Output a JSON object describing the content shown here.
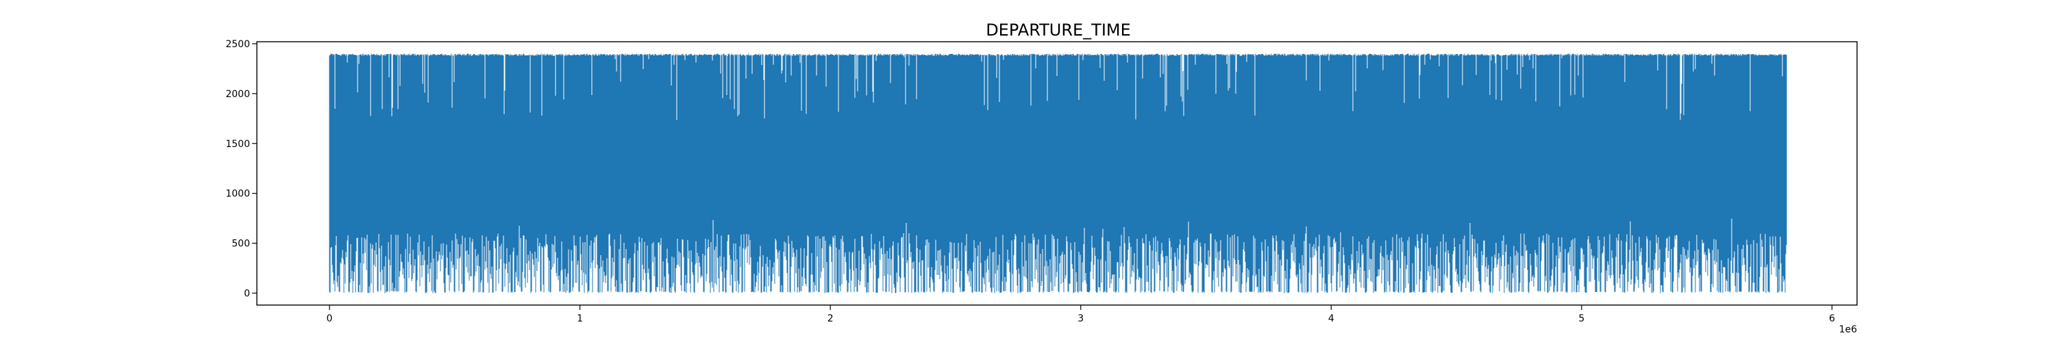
{
  "chart_data": {
    "type": "line",
    "title": "DEPARTURE_TIME",
    "xlabel": "",
    "ylabel": "",
    "x_offset_label": "1e6",
    "xlim": [
      -290000,
      6100000
    ],
    "ylim": [
      -120,
      2520
    ],
    "x_ticks": [
      0,
      1000000,
      2000000,
      3000000,
      4000000,
      5000000,
      6000000
    ],
    "x_tick_labels": [
      "0",
      "1",
      "2",
      "3",
      "4",
      "5",
      "6"
    ],
    "y_ticks": [
      0,
      500,
      1000,
      1500,
      2000,
      2500
    ],
    "y_tick_labels": [
      "0",
      "500",
      "1000",
      "1500",
      "2000",
      "2500"
    ],
    "grid": false,
    "series": [
      {
        "color": "#1f77b4",
        "x_range": [
          0,
          5820000
        ],
        "y_range": [
          1,
          2400
        ],
        "typical_daily_range": [
          600,
          2380
        ],
        "peak_value": 2400,
        "minimum_value": 1
      }
    ]
  }
}
